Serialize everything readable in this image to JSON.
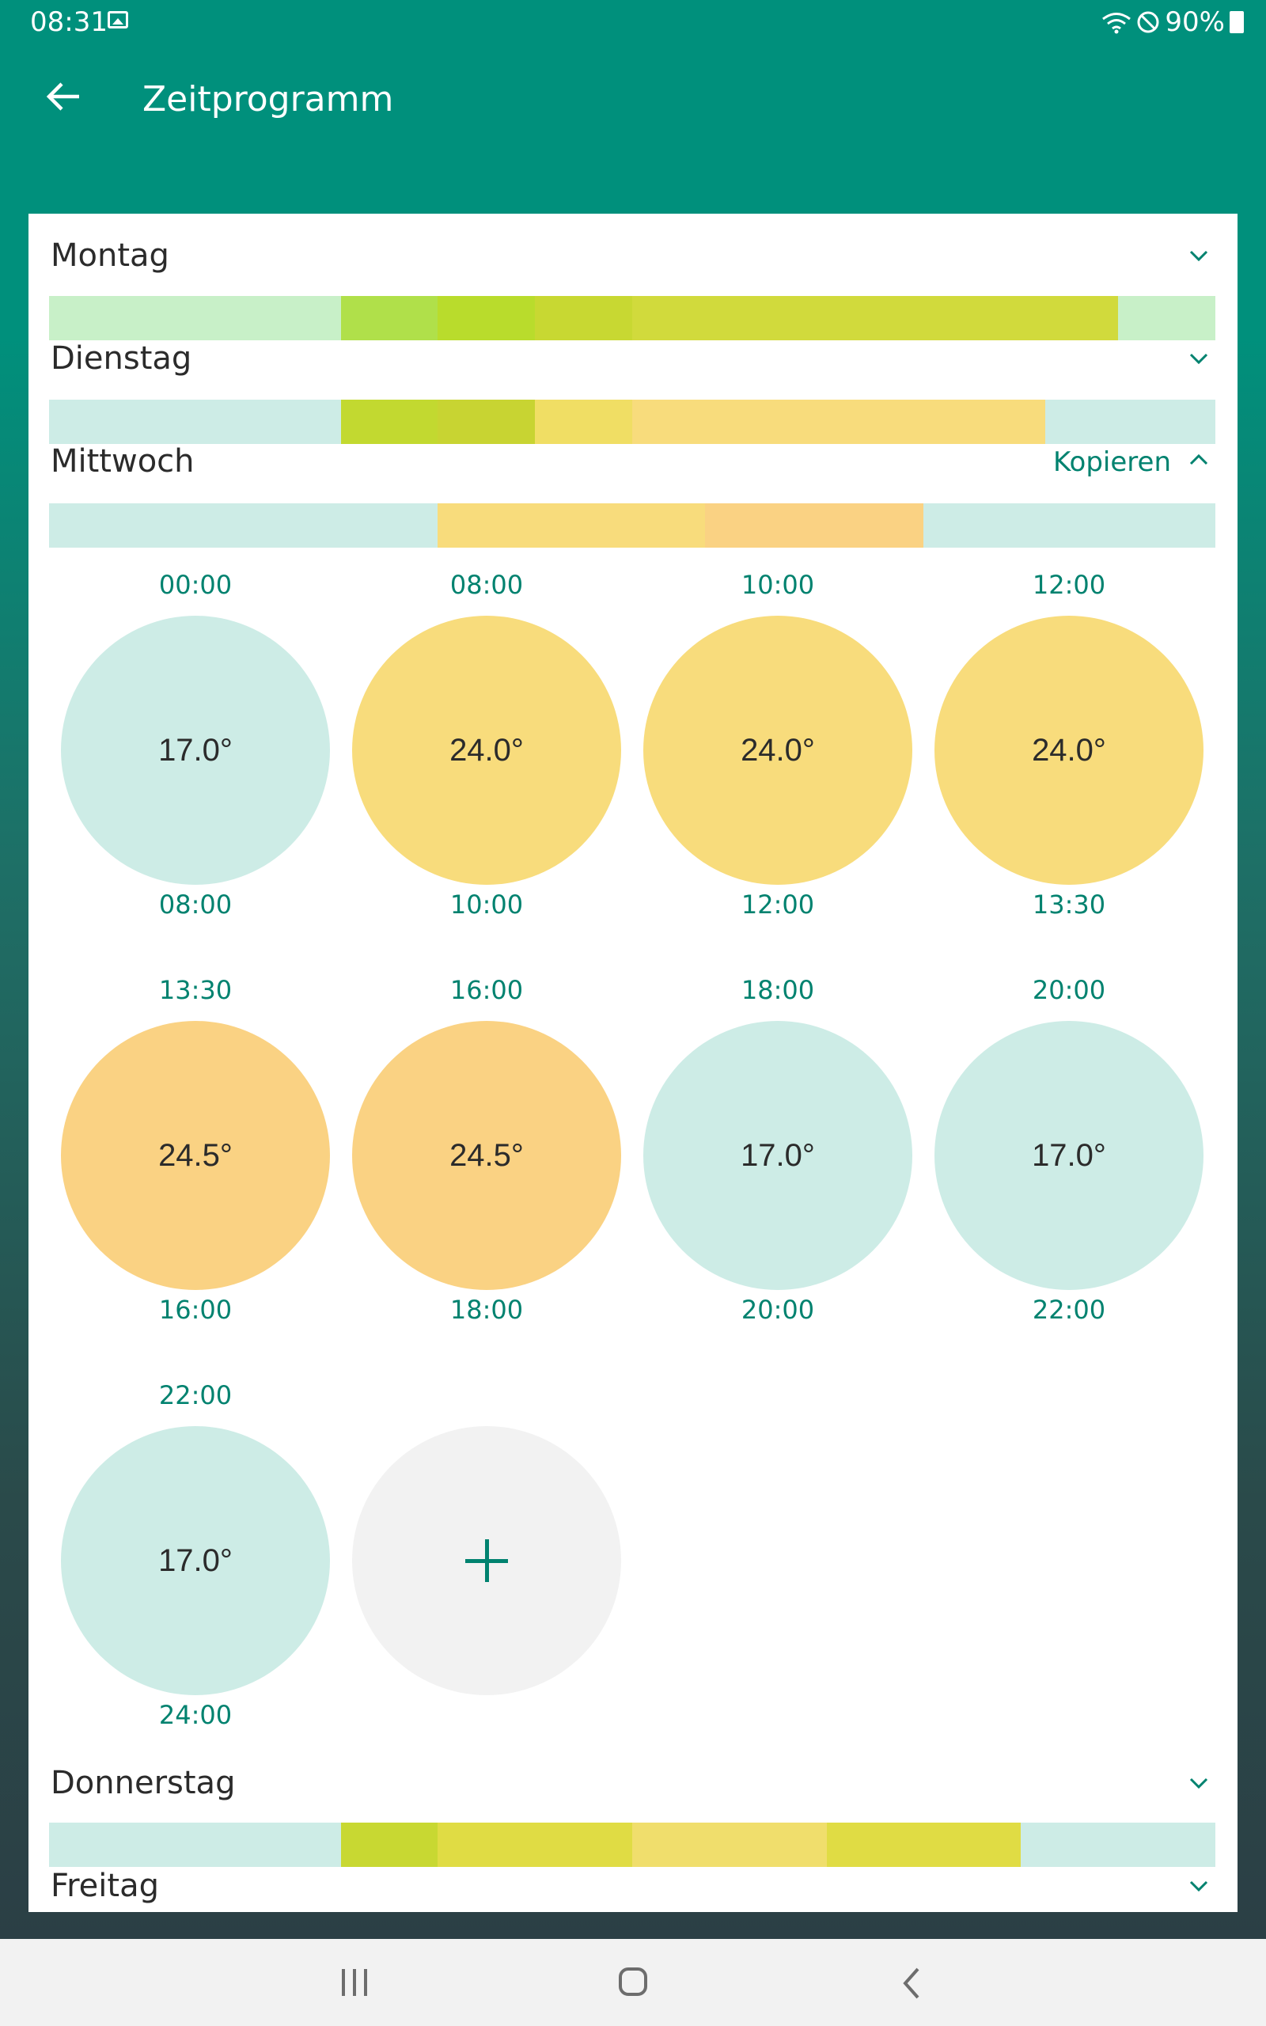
{
  "status_bar": {
    "time": "08:31",
    "battery": "90%",
    "icons": [
      "image-icon",
      "wifi-icon",
      "do-not-disturb-icon",
      "battery-icon"
    ]
  },
  "app_bar": {
    "title": "Zeitprogramm",
    "back_icon": "arrow-left-icon"
  },
  "colors": {
    "accent": "#00826f",
    "header": "#00907c",
    "cool": "#cdece6",
    "warm": "#f8dc7c",
    "hot": "#fad283",
    "add": "#f2f2f2"
  },
  "days": {
    "montag": {
      "name": "Montag",
      "bar": [
        {
          "from": "00:00",
          "to": "06:00",
          "color": "#c8f0c8"
        },
        {
          "from": "06:00",
          "to": "08:00",
          "color": "#b0e04a"
        },
        {
          "from": "08:00",
          "to": "10:00",
          "color": "#b9dc2c"
        },
        {
          "from": "10:00",
          "to": "12:00",
          "color": "#c8d832"
        },
        {
          "from": "12:00",
          "to": "22:00",
          "color": "#d1da3c"
        },
        {
          "from": "22:00",
          "to": "24:00",
          "color": "#c8f0c8"
        }
      ]
    },
    "dienstag": {
      "name": "Dienstag",
      "bar": [
        {
          "from": "00:00",
          "to": "06:00",
          "color": "#cdece6"
        },
        {
          "from": "06:00",
          "to": "08:00",
          "color": "#c2d930"
        },
        {
          "from": "08:00",
          "to": "10:00",
          "color": "#c8d432"
        },
        {
          "from": "10:00",
          "to": "12:00",
          "color": "#f0de64"
        },
        {
          "from": "12:00",
          "to": "20:30",
          "color": "#f8dc7c"
        },
        {
          "from": "20:30",
          "to": "24:00",
          "color": "#cdece6"
        }
      ]
    },
    "mittwoch": {
      "name": "Mittwoch",
      "copy_label": "Kopieren",
      "bar": [
        {
          "from": "00:00",
          "to": "08:00",
          "color": "#cdece6"
        },
        {
          "from": "08:00",
          "to": "13:30",
          "color": "#f8dc7c"
        },
        {
          "from": "13:30",
          "to": "18:00",
          "color": "#fad283"
        },
        {
          "from": "18:00",
          "to": "24:00",
          "color": "#cdece6"
        }
      ],
      "slots": [
        {
          "start": "00:00",
          "temp": "17.0°",
          "end": "08:00",
          "color": "#cdece6"
        },
        {
          "start": "08:00",
          "temp": "24.0°",
          "end": "10:00",
          "color": "#f8dc7c"
        },
        {
          "start": "10:00",
          "temp": "24.0°",
          "end": "12:00",
          "color": "#f8dc7c"
        },
        {
          "start": "12:00",
          "temp": "24.0°",
          "end": "13:30",
          "color": "#f8dc7c"
        },
        {
          "start": "13:30",
          "temp": "24.5°",
          "end": "16:00",
          "color": "#fad283"
        },
        {
          "start": "16:00",
          "temp": "24.5°",
          "end": "18:00",
          "color": "#fad283"
        },
        {
          "start": "18:00",
          "temp": "17.0°",
          "end": "20:00",
          "color": "#cdece6"
        },
        {
          "start": "20:00",
          "temp": "17.0°",
          "end": "22:00",
          "color": "#cdece6"
        },
        {
          "start": "22:00",
          "temp": "17.0°",
          "end": "24:00",
          "color": "#cdece6"
        }
      ],
      "add_icon": "plus-icon"
    },
    "donnerstag": {
      "name": "Donnerstag",
      "bar": [
        {
          "from": "00:00",
          "to": "06:00",
          "color": "#cdece6"
        },
        {
          "from": "06:00",
          "to": "08:00",
          "color": "#c8d832"
        },
        {
          "from": "08:00",
          "to": "12:00",
          "color": "#e0dc44"
        },
        {
          "from": "12:00",
          "to": "16:00",
          "color": "#f0de6c"
        },
        {
          "from": "16:00",
          "to": "20:00",
          "color": "#e0dc44"
        },
        {
          "from": "20:00",
          "to": "24:00",
          "color": "#cdece6"
        }
      ]
    },
    "freitag": {
      "name": "Freitag"
    }
  },
  "nav_bar": {
    "icons": [
      "recent-apps-icon",
      "home-icon",
      "back-icon"
    ]
  }
}
